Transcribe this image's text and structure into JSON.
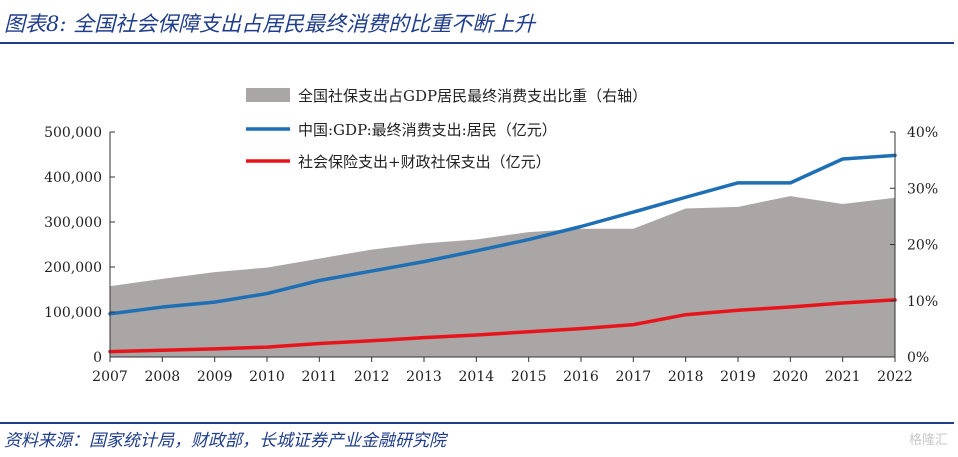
{
  "title": "图表8:  全国社会保障支出占居民最终消费的比重不断上升",
  "source": "资料来源：国家统计局，财政部，长城证券产业金融研究院",
  "watermark": "格隆汇",
  "chart_data": {
    "type": "line",
    "title": "",
    "xlabel": "",
    "ylabel": "",
    "categories": [
      "2007",
      "2008",
      "2009",
      "2010",
      "2011",
      "2012",
      "2013",
      "2014",
      "2015",
      "2016",
      "2017",
      "2018",
      "2019",
      "2020",
      "2021",
      "2022"
    ],
    "ylim_left": [
      0,
      500000
    ],
    "yticks_left": [
      "0",
      "100,000",
      "200,000",
      "300,000",
      "400,000",
      "500,000"
    ],
    "ylim_right": [
      0,
      40
    ],
    "yticks_right": [
      "0%",
      "10%",
      "20%",
      "30%",
      "40%"
    ],
    "series": [
      {
        "name": "全国社保支出占GDP居民最终消费支出比重（右轴）",
        "axis": "right",
        "kind": "area",
        "color": "#aaa6a6",
        "values": [
          12.6,
          13.9,
          15.1,
          15.9,
          17.5,
          19.1,
          20.2,
          20.9,
          22.2,
          22.8,
          22.8,
          26.4,
          26.7,
          28.6,
          27.2,
          28.3
        ]
      },
      {
        "name": "中国:GDP:最终消费支出:居民（亿元）",
        "axis": "left",
        "kind": "line",
        "color": "#1f6fb5",
        "values": [
          96000,
          111000,
          122000,
          141000,
          170000,
          191000,
          212000,
          236000,
          261000,
          290000,
          322000,
          355000,
          387000,
          387000,
          440000,
          448000
        ]
      },
      {
        "name": "社会保险支出+财政社保支出（亿元）",
        "axis": "left",
        "kind": "line",
        "color": "#e8141b",
        "values": [
          12000,
          15000,
          18000,
          22000,
          30000,
          36000,
          43000,
          49000,
          56000,
          63000,
          72000,
          94000,
          104000,
          111000,
          120000,
          127000
        ]
      }
    ],
    "grid": false,
    "legend_position": "top-center"
  }
}
